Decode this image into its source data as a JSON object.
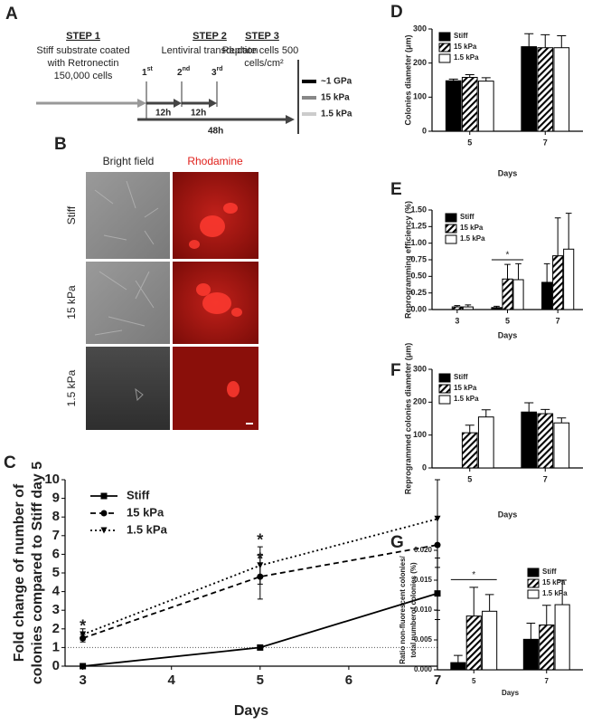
{
  "panel_a": {
    "label": "A",
    "steps": [
      {
        "title": "STEP 1",
        "lines": [
          "Stiff substrate coated",
          "with Retronectin",
          "150,000 cells"
        ]
      },
      {
        "title": "STEP 2",
        "lines": [
          "Lentiviral transduction"
        ]
      },
      {
        "title": "STEP 3",
        "lines": [
          "Replate cells 500",
          "cells/cm²"
        ]
      }
    ],
    "injections": [
      {
        "n": "1",
        "sup": "st"
      },
      {
        "n": "2",
        "sup": "nd"
      },
      {
        "n": "3",
        "sup": "rd"
      }
    ],
    "intervals": [
      "12h",
      "12h",
      "48h"
    ],
    "legend": [
      "~1 GPa",
      "15 kPa",
      "1.5 kPa"
    ]
  },
  "panel_b": {
    "label": "B",
    "columns": [
      "Bright field",
      "Rhodamine"
    ],
    "rows": [
      "Stiff",
      "15 kPa",
      "1.5 kPa"
    ]
  },
  "chart_data": [
    {
      "panel": "C",
      "type": "line",
      "x": [
        3,
        5,
        7
      ],
      "xlim": [
        2.8,
        7
      ],
      "xticks": [
        3,
        4,
        5,
        6,
        7
      ],
      "ylim": [
        0,
        10
      ],
      "yticks": [
        0,
        1,
        2,
        3,
        4,
        5,
        6,
        7,
        8,
        9,
        10
      ],
      "xlabel": "Days",
      "ylabel": [
        "Fold change of number of",
        "colonies compared to Stiff day 5"
      ],
      "hline": 1,
      "series": [
        {
          "name": "Stiff",
          "color": "#000000",
          "dash": "solid",
          "marker": "square",
          "values": [
            0,
            1,
            3.9
          ],
          "errors": [
            0,
            0,
            1.4
          ]
        },
        {
          "name": "15 kPa",
          "color": "#000000",
          "dash": "dashed",
          "marker": "circle",
          "values": [
            1.5,
            4.8,
            6.5
          ],
          "errors": [
            0.2,
            1.2,
            3.5
          ]
        },
        {
          "name": "1.5 kPa",
          "color": "#000000",
          "dash": "dotted",
          "marker": "triangle",
          "values": [
            1.7,
            5.4,
            7.9
          ],
          "errors": [
            0.3,
            1.0,
            2.1
          ]
        }
      ],
      "annotations": [
        {
          "text": "*",
          "x": 3,
          "y": 2.1
        },
        {
          "text": "*",
          "x": 5,
          "y": 6.7
        },
        {
          "text": "*",
          "x": 5,
          "y": 5.7
        }
      ]
    },
    {
      "panel": "D",
      "type": "bar",
      "categories": [
        "5",
        "7"
      ],
      "ylim": [
        0,
        300
      ],
      "yticks": [
        0,
        100,
        200,
        300
      ],
      "xlabel": "Days",
      "ylabel": [
        "Colonies diameter (μm)"
      ],
      "series": [
        {
          "name": "Stiff",
          "color": "#000000",
          "values": [
            148,
            248
          ],
          "errors": [
            5,
            38
          ]
        },
        {
          "name": "15 kPa",
          "color": "#ffffff",
          "hatch": true,
          "values": [
            158,
            245
          ],
          "errors": [
            8,
            38
          ]
        },
        {
          "name": "1.5 kPa",
          "color": "#ffffff",
          "values": [
            147,
            245
          ],
          "errors": [
            10,
            35
          ]
        }
      ]
    },
    {
      "panel": "E",
      "type": "bar",
      "categories": [
        "3",
        "5",
        "7"
      ],
      "ylim": [
        0,
        1.5
      ],
      "yticks": [
        {
          "value": 0,
          "label": "0.00"
        },
        {
          "value": 0.25,
          "label": "0.25"
        },
        {
          "value": 0.5,
          "label": "0.50"
        },
        {
          "value": 0.75,
          "label": "0.75"
        },
        {
          "value": 1,
          "label": "1.00"
        },
        {
          "value": 1.25,
          "label": "1.25"
        },
        {
          "value": 1.5,
          "label": "1.50"
        }
      ],
      "xlabel": "Days",
      "ylabel": [
        "Reprogramming efficiency (%)"
      ],
      "series": [
        {
          "name": "Stiff",
          "color": "#000000",
          "values": [
            0,
            0.03,
            0.41
          ],
          "errors": [
            0,
            0.02,
            0.28
          ]
        },
        {
          "name": "15 kPa",
          "color": "#ffffff",
          "hatch": true,
          "values": [
            0.04,
            0.46,
            0.81
          ],
          "errors": [
            0.02,
            0.22,
            0.57
          ]
        },
        {
          "name": "1.5 kPa",
          "color": "#ffffff",
          "values": [
            0.04,
            0.45,
            0.91
          ],
          "errors": [
            0.03,
            0.24,
            0.54
          ]
        }
      ],
      "annotations": [
        {
          "text": "*",
          "category": "5",
          "y": 0.75
        }
      ]
    },
    {
      "panel": "F",
      "type": "bar",
      "categories": [
        "5",
        "7"
      ],
      "ylim": [
        0,
        300
      ],
      "yticks": [
        0,
        100,
        200,
        300
      ],
      "xlabel": "Days",
      "ylabel": [
        "Reprogrammed colonies diameter (μm)"
      ],
      "series": [
        {
          "name": "Stiff",
          "color": "#000000",
          "values": [
            null,
            170
          ],
          "errors": [
            null,
            28
          ]
        },
        {
          "name": "15 kPa",
          "color": "#ffffff",
          "hatch": true,
          "values": [
            107,
            165
          ],
          "errors": [
            23,
            13
          ]
        },
        {
          "name": "1.5 kPa",
          "color": "#ffffff",
          "values": [
            155,
            137
          ],
          "errors": [
            22,
            15
          ]
        }
      ]
    },
    {
      "panel": "G",
      "type": "bar",
      "categories": [
        "5",
        "7"
      ],
      "ylim": [
        0,
        0.02
      ],
      "yticks": [
        {
          "value": 0,
          "label": "0.000"
        },
        {
          "value": 0.005,
          "label": "0.005"
        },
        {
          "value": 0.01,
          "label": "0.010"
        },
        {
          "value": 0.015,
          "label": "0.015"
        },
        {
          "value": 0.02,
          "label": "0.020"
        }
      ],
      "xlabel": "Days",
      "ylabel": [
        "Ratio non-fluorescent colonies/",
        "total numberof colonies (%)"
      ],
      "series": [
        {
          "name": "Stiff",
          "color": "#000000",
          "values": [
            0.0012,
            0.0051
          ],
          "errors": [
            0.0012,
            0.0027
          ]
        },
        {
          "name": "15 kPa",
          "color": "#ffffff",
          "hatch": true,
          "values": [
            0.009,
            0.0075
          ],
          "errors": [
            0.0048,
            0.0033
          ]
        },
        {
          "name": "1.5 kPa",
          "color": "#ffffff",
          "values": [
            0.0098,
            0.0109
          ],
          "errors": [
            0.0028,
            0.0041
          ]
        }
      ],
      "annotations": [
        {
          "text": "*",
          "category": "5",
          "y": 0.0151
        }
      ]
    }
  ]
}
